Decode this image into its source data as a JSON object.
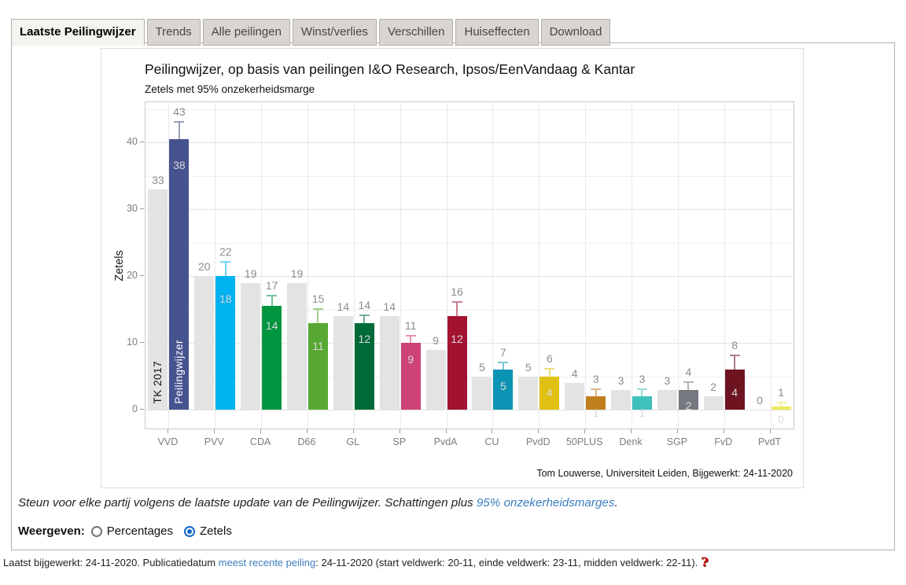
{
  "tabs": [
    {
      "label": "Laatste Peilingwijzer",
      "active": true
    },
    {
      "label": "Trends",
      "active": false
    },
    {
      "label": "Alle peilingen",
      "active": false
    },
    {
      "label": "Winst/verlies",
      "active": false
    },
    {
      "label": "Verschillen",
      "active": false
    },
    {
      "label": "Huiseffecten",
      "active": false
    },
    {
      "label": "Download",
      "active": false
    }
  ],
  "chart": {
    "title": "Peilingwijzer, op basis van peilingen I&O Research, Ipsos/EenVandaag & Kantar",
    "subtitle": "Zetels met 95% onzekerheidsmarge",
    "ylabel": "Zetels",
    "caption": "Tom Louwerse, Universiteit Leiden, Bijgewerkt: 24-11-2020"
  },
  "chart_data": {
    "type": "bar",
    "categories": [
      "VVD",
      "PVV",
      "CDA",
      "D66",
      "GL",
      "SP",
      "PvdA",
      "CU",
      "PvdD",
      "50PLUS",
      "Denk",
      "SGP",
      "FvD",
      "PvdT"
    ],
    "series": [
      {
        "name": "TK 2017",
        "color": "#e3e3e3",
        "values": [
          33,
          20,
          19,
          19,
          14,
          14,
          9,
          5,
          5,
          4,
          3,
          3,
          2,
          0
        ]
      },
      {
        "name": "Peilingwijzer",
        "values": [
          40.5,
          20,
          15.5,
          13,
          13,
          10,
          14,
          6,
          5,
          2,
          2,
          3,
          6,
          0.5
        ],
        "low": [
          38,
          18,
          14,
          11,
          12,
          9,
          12,
          5,
          4,
          1,
          1,
          2,
          4,
          0
        ],
        "high": [
          43,
          22,
          17,
          15,
          14,
          11,
          16,
          7,
          6,
          3,
          3,
          4,
          8,
          1
        ],
        "colors": [
          "#47538f",
          "#00b2f0",
          "#009640",
          "#57a934",
          "#006b38",
          "#cd4277",
          "#a41231",
          "#0d94b4",
          "#e2c115",
          "#c07e1e",
          "#3fc0bc",
          "#75797f",
          "#6e1421",
          "#eeeb5a"
        ]
      }
    ],
    "title": "Peilingwijzer, op basis van peilingen I&O Research, Ipsos/EenVandaag & Kantar",
    "subtitle": "Zetels met 95% onzekerheidsmarge",
    "xlabel": "",
    "ylabel": "Zetels",
    "ylim": [
      0,
      46
    ],
    "yticks": [
      0,
      10,
      20,
      30,
      40
    ],
    "grid": "horizontal major (10) + minor (5), vertical line at each category center",
    "legend_position": "none (series names written vertically inside first pair of bars)",
    "label_colors": {
      "above_bars": "#8c8c8c",
      "inside_bars": "#d9d9d9"
    }
  },
  "note": {
    "text_before": "Steun voor elke partij volgens de laatste update van de Peilingwijzer. Schattingen plus ",
    "link": "95% onzekerheidsmarges",
    "text_after": "."
  },
  "controls": {
    "label": "Weergeven:",
    "options": [
      {
        "label": "Percentages",
        "selected": false
      },
      {
        "label": "Zetels",
        "selected": true
      }
    ]
  },
  "footer": {
    "text1": "Laatst bijgewerkt: 24-11-2020. Publicatiedatum ",
    "link": "meest recente peiling",
    "text2": ": 24-11-2020 (start veldwerk: 20-11, einde veldwerk: 23-11, midden veldwerk: 22-11).",
    "help_icon": "?"
  }
}
